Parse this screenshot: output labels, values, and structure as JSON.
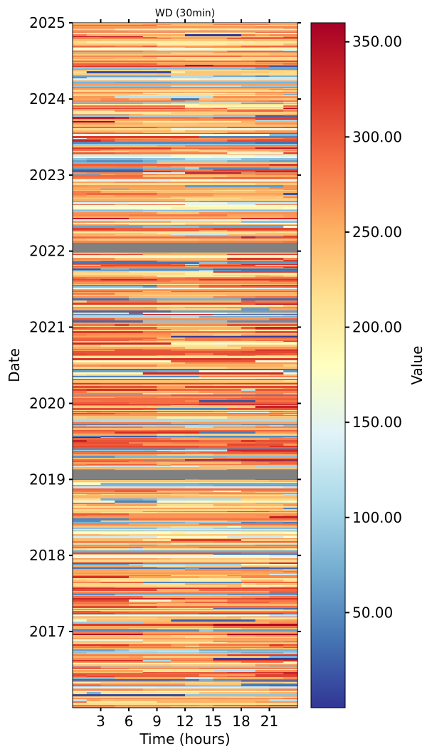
{
  "chart_data": {
    "type": "heatmap",
    "title": "WD (30min)",
    "xlabel": "Time (hours)",
    "ylabel": "Date",
    "colorbar_label": "Value",
    "colormap": "RdYlBu_r",
    "x_range": [
      0,
      24
    ],
    "x_ticks": [
      3,
      6,
      9,
      12,
      15,
      18,
      21
    ],
    "x_tick_labels": [
      "3",
      "6",
      "9",
      "12",
      "15",
      "18",
      "21"
    ],
    "y_range": [
      "2016-01-01",
      "2025-01-01"
    ],
    "y_ticks": [
      "2017-01-01",
      "2018-01-01",
      "2019-01-01",
      "2020-01-01",
      "2021-01-01",
      "2022-01-01",
      "2023-01-01",
      "2024-01-01",
      "2025-01-01"
    ],
    "y_tick_labels": [
      "2017",
      "2018",
      "2019",
      "2020",
      "2021",
      "2022",
      "2023",
      "2024",
      "2025"
    ],
    "color_range": [
      0,
      360
    ],
    "colorbar_ticks": [
      50,
      100,
      150,
      200,
      250,
      300,
      350
    ],
    "colorbar_tick_labels": [
      "50.00",
      "100.00",
      "150.00",
      "200.00",
      "250.00",
      "300.00",
      "350.00"
    ],
    "missing_data_periods": [
      {
        "start": "2019-01-01",
        "end": "2019-02-15"
      },
      {
        "start": "2021-12-25",
        "end": "2022-02-10"
      }
    ],
    "missing_color": "#808080",
    "pattern": "Predominantly south-westerly wind directions (≈200–300°) with lighter, southerly (≈150–220°) values around midday and scattered north-easterly (≈20–80°) values, especially in early morning hours"
  }
}
